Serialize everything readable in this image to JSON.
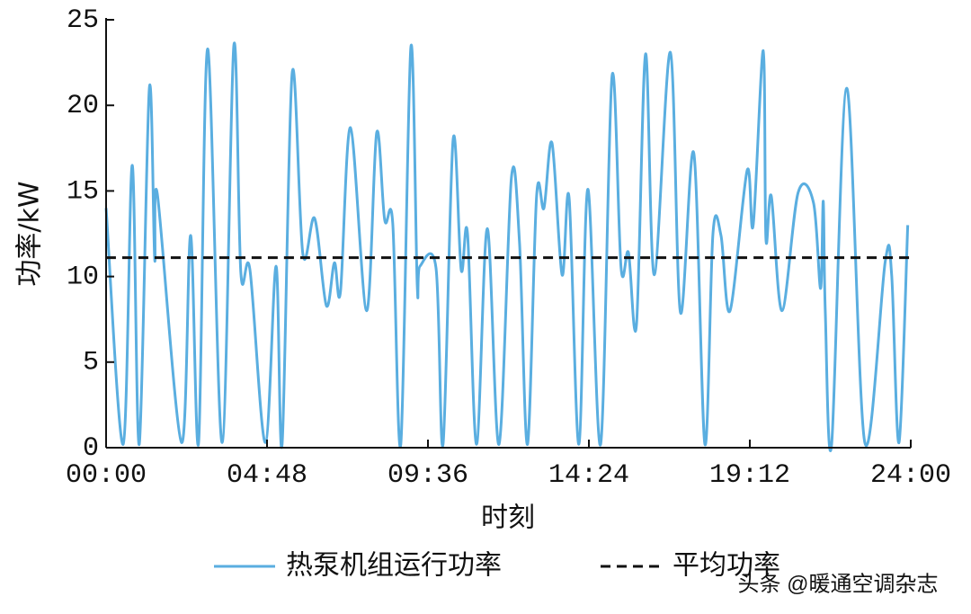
{
  "chart_data": {
    "type": "line",
    "ylabel": "功率/kW",
    "xlabel": "时刻",
    "xlim": [
      0,
      24
    ],
    "ylim": [
      0,
      25
    ],
    "xticks": [
      {
        "value": 0,
        "label": "00:00"
      },
      {
        "value": 4.8,
        "label": "04:48"
      },
      {
        "value": 9.6,
        "label": "09:36"
      },
      {
        "value": 14.4,
        "label": "14:24"
      },
      {
        "value": 19.2,
        "label": "19:12"
      },
      {
        "value": 24,
        "label": "24:00"
      }
    ],
    "yticks": [
      0,
      5,
      10,
      15,
      20,
      25
    ],
    "watermark": "头条 @暖通空调杂志",
    "series": [
      {
        "name": "热泵机组运行功率",
        "color": "#5aaee0",
        "dashed": false,
        "x": [
          0,
          0.51,
          0.78,
          0.99,
          1.29,
          1.45,
          1.53,
          2.25,
          2.52,
          2.76,
          3.03,
          3.46,
          3.81,
          4.02,
          4.29,
          4.75,
          5.07,
          5.25,
          5.55,
          5.87,
          6.22,
          6.57,
          6.81,
          6.99,
          7.29,
          7.77,
          8.07,
          8.31,
          8.55,
          8.79,
          9.09,
          9.28,
          9.36,
          9.84,
          10.05,
          10.35,
          10.59,
          10.78,
          11.05,
          11.37,
          11.72,
          12.09,
          12.33,
          12.57,
          12.84,
          13.06,
          13.3,
          13.6,
          13.81,
          14.1,
          14.37,
          14.75,
          15.09,
          15.36,
          15.58,
          15.82,
          16.09,
          16.35,
          16.83,
          17.13,
          17.53,
          17.86,
          18.1,
          18.34,
          18.61,
          19.12,
          19.3,
          19.6,
          19.68,
          19.84,
          20.16,
          20.64,
          21.1,
          21.31,
          21.39,
          21.45,
          21.64,
          22.09,
          22.63,
          23.24,
          23.43,
          23.65,
          23.91
        ],
        "values": [
          14.0,
          0.2,
          16.5,
          0.2,
          21.0,
          11.0,
          14.8,
          0.3,
          12.4,
          0.3,
          23.3,
          0.3,
          23.5,
          10.2,
          10.4,
          0.3,
          10.6,
          0.2,
          21.9,
          11.3,
          13.4,
          8.3,
          10.8,
          9.1,
          18.7,
          8.0,
          18.4,
          13.3,
          13.1,
          0.2,
          23.4,
          9.5,
          10.6,
          10.5,
          0.2,
          18.0,
          10.4,
          12.5,
          0.2,
          12.8,
          0.2,
          15.8,
          12.0,
          0.2,
          14.7,
          14.0,
          17.8,
          10.1,
          14.6,
          0.2,
          15.1,
          0.2,
          21.7,
          10.5,
          11.4,
          7.2,
          23.0,
          10.1,
          23.1,
          7.9,
          17.2,
          0.2,
          12.5,
          12.4,
          8.0,
          16.2,
          13.0,
          23.2,
          12.2,
          14.7,
          8.0,
          14.9,
          14.3,
          9.3,
          14.4,
          8.0,
          0.2,
          21.0,
          0.3,
          10.9,
          10.1,
          0.3,
          13.0
        ]
      },
      {
        "name": "平均功率",
        "color": "#111111",
        "dashed": true,
        "x": [
          0,
          24
        ],
        "values": [
          11.1,
          11.1
        ]
      }
    ]
  }
}
